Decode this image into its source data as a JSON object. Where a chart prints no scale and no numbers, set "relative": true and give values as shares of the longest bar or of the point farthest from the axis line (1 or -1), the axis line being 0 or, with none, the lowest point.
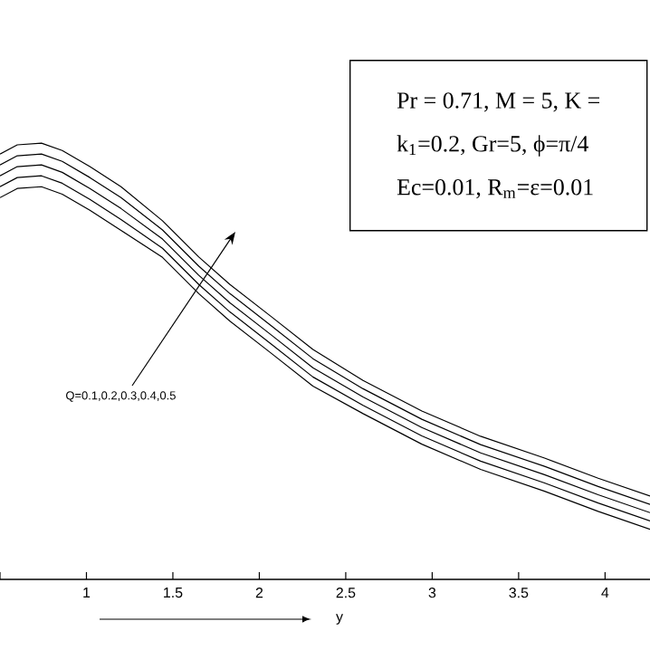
{
  "chart_data": {
    "type": "line",
    "relative": true,
    "xlabel": "y",
    "xlim": [
      0.5,
      4.26
    ],
    "xticks": [
      {
        "value": 0.5,
        "label": null
      },
      1,
      1.5,
      2,
      2.5,
      3,
      3.5,
      4
    ],
    "x": [
      0.5,
      0.6,
      0.74,
      0.86,
      1.02,
      1.2,
      1.44,
      1.65,
      1.83,
      2.07,
      2.31,
      2.6,
      2.94,
      3.28,
      3.65,
      3.96,
      4.26
    ],
    "series": [
      {
        "color": "#000000",
        "values": [
          0.975,
          0.996,
          1,
          0.983,
          0.946,
          0.9,
          0.822,
          0.739,
          0.676,
          0.602,
          0.527,
          0.456,
          0.386,
          0.328,
          0.278,
          0.232,
          0.191
        ]
      },
      {
        "color": "#000000",
        "values": [
          0.95,
          0.971,
          0.975,
          0.958,
          0.921,
          0.875,
          0.801,
          0.718,
          0.655,
          0.581,
          0.506,
          0.437,
          0.367,
          0.309,
          0.259,
          0.213,
          0.172
        ]
      },
      {
        "color": "#000000",
        "values": [
          0.925,
          0.946,
          0.95,
          0.933,
          0.896,
          0.85,
          0.78,
          0.697,
          0.634,
          0.56,
          0.485,
          0.418,
          0.348,
          0.29,
          0.24,
          0.194,
          0.153
        ]
      },
      {
        "color": "#000000",
        "values": [
          0.9,
          0.921,
          0.925,
          0.908,
          0.871,
          0.825,
          0.759,
          0.676,
          0.613,
          0.539,
          0.464,
          0.399,
          0.329,
          0.271,
          0.221,
          0.175,
          0.134
        ]
      },
      {
        "color": "#000000",
        "values": [
          0.875,
          0.896,
          0.9,
          0.883,
          0.846,
          0.8,
          0.738,
          0.655,
          0.592,
          0.518,
          0.443,
          0.38,
          0.31,
          0.252,
          0.202,
          0.156,
          0.115
        ]
      }
    ],
    "annotations": [
      "Pr = 0.71, M = 5, K =",
      "k$_{1}$=0.2, Gr=5, ϕ=π/4",
      "Ec=0.01, R$_{m}$=ε=0.01",
      "Q=0.1,0.2,0.3,0.4,0.5"
    ],
    "grid": false,
    "marker": "none",
    "line_style": "solid"
  }
}
